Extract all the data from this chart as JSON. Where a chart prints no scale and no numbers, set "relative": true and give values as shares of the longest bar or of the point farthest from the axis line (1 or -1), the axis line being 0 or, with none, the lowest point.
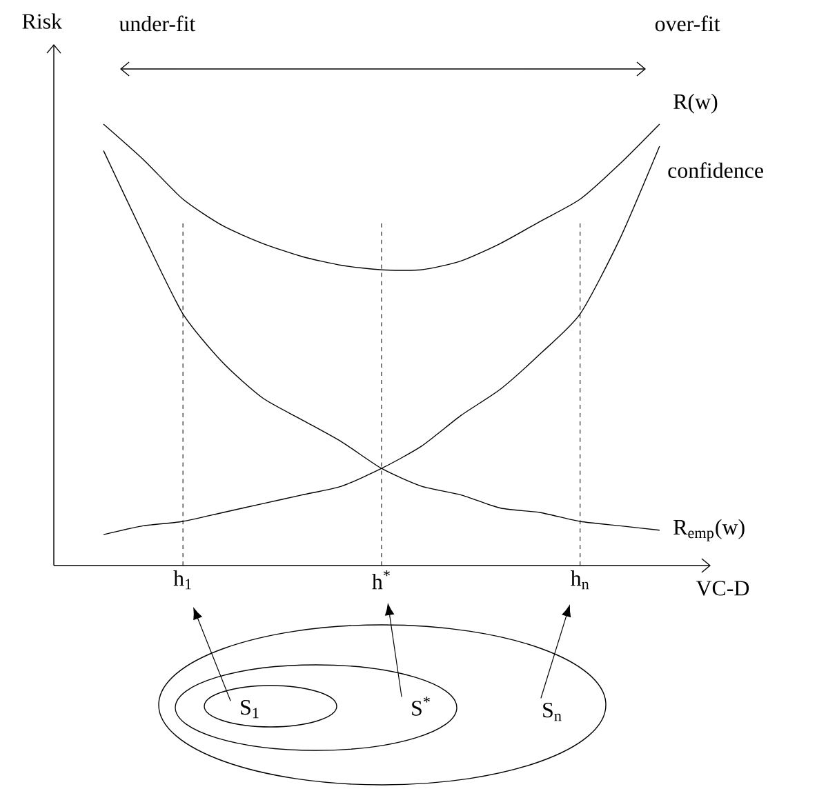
{
  "chart_data": {
    "type": "line",
    "relative": true,
    "ylabel": "Risk",
    "xlabel": "VC-D",
    "categories": [
      null,
      null,
      "h$_{1}$",
      null,
      null,
      null,
      null,
      "h$^{*}$",
      null,
      null,
      null,
      null,
      "h$_{n}$",
      null,
      null
    ],
    "series": [
      {
        "name": "R(w)",
        "color": "#000000",
        "values": [
          1.0,
          0.92,
          0.83,
          0.77,
          0.73,
          0.7,
          0.68,
          0.67,
          0.67,
          0.69,
          0.73,
          0.78,
          0.83,
          0.91,
          1.0
        ]
      },
      {
        "name": "confidence",
        "color": "#000000",
        "values": [
          0.07,
          0.09,
          0.1,
          0.12,
          0.14,
          0.16,
          0.18,
          0.22,
          0.27,
          0.34,
          0.4,
          0.48,
          0.57,
          0.74,
          0.95
        ]
      },
      {
        "name": "R$_{emp}$(w)",
        "color": "#000000",
        "values": [
          0.94,
          0.75,
          0.57,
          0.46,
          0.38,
          0.33,
          0.28,
          0.22,
          0.18,
          0.16,
          0.13,
          0.12,
          0.1,
          0.09,
          0.08
        ]
      }
    ],
    "ref_lines": [
      {
        "axis": "x",
        "value": "h$_{1}$",
        "color": "#000000",
        "line_style": "dashed"
      },
      {
        "axis": "x",
        "value": "h$^{*}$",
        "color": "#000000",
        "line_style": "dashed"
      },
      {
        "axis": "x",
        "value": "h$_{n}$",
        "color": "#000000",
        "line_style": "dashed"
      }
    ],
    "annotations": [
      "under-fit",
      "over-fit",
      "S$_{1}$",
      "S$^{*}$",
      "S$_{n}$"
    ],
    "line_style": "solid",
    "marker": "none",
    "legend": false,
    "grid": false
  }
}
